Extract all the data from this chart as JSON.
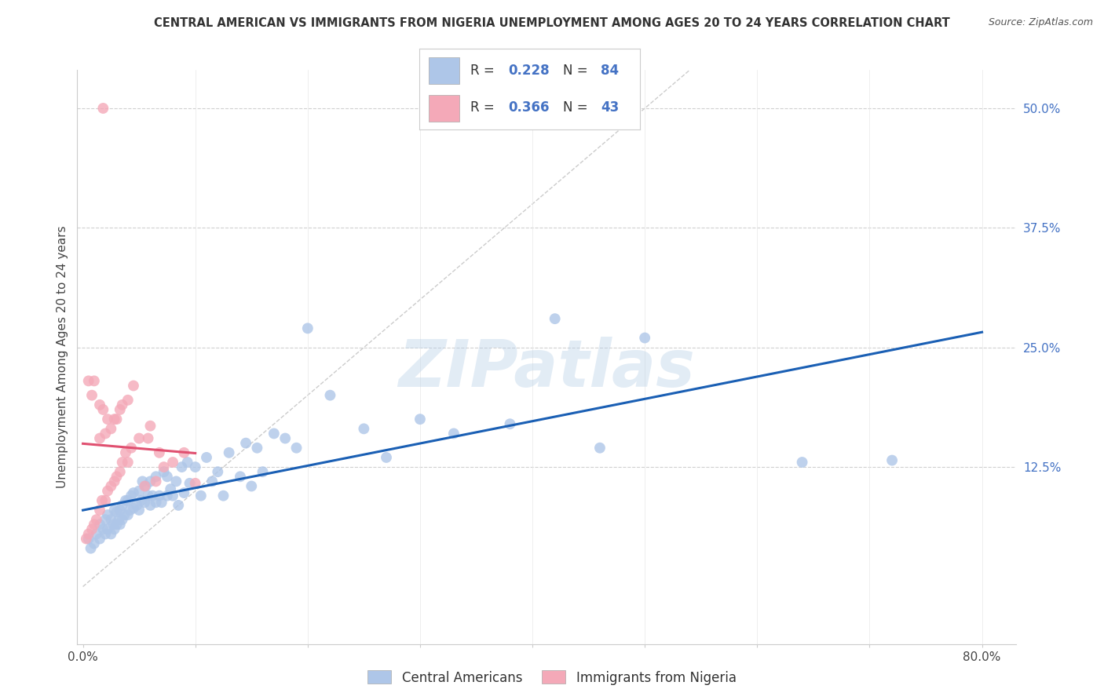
{
  "title": "CENTRAL AMERICAN VS IMMIGRANTS FROM NIGERIA UNEMPLOYMENT AMONG AGES 20 TO 24 YEARS CORRELATION CHART",
  "source": "Source: ZipAtlas.com",
  "ylabel": "Unemployment Among Ages 20 to 24 years",
  "x_ticks": [
    0.0,
    0.1,
    0.2,
    0.3,
    0.4,
    0.5,
    0.6,
    0.7,
    0.8
  ],
  "y_ticks": [
    0.0,
    0.125,
    0.25,
    0.375,
    0.5
  ],
  "xlim": [
    -0.005,
    0.83
  ],
  "ylim": [
    -0.06,
    0.54
  ],
  "blue_R": 0.228,
  "blue_N": 84,
  "pink_R": 0.366,
  "pink_N": 43,
  "blue_color": "#aec6e8",
  "pink_color": "#f4a9b8",
  "blue_line_color": "#1a5fb4",
  "pink_line_color": "#e05070",
  "watermark_text": "ZIPatlas",
  "legend_label_blue": "Central Americans",
  "legend_label_pink": "Immigrants from Nigeria",
  "blue_scatter_x": [
    0.005,
    0.007,
    0.01,
    0.012,
    0.015,
    0.015,
    0.018,
    0.02,
    0.02,
    0.022,
    0.022,
    0.025,
    0.025,
    0.027,
    0.028,
    0.028,
    0.03,
    0.03,
    0.032,
    0.033,
    0.033,
    0.035,
    0.035,
    0.037,
    0.038,
    0.04,
    0.04,
    0.042,
    0.043,
    0.045,
    0.045,
    0.048,
    0.05,
    0.05,
    0.052,
    0.053,
    0.055,
    0.056,
    0.058,
    0.06,
    0.06,
    0.062,
    0.065,
    0.065,
    0.068,
    0.07,
    0.072,
    0.075,
    0.075,
    0.078,
    0.08,
    0.083,
    0.085,
    0.088,
    0.09,
    0.093,
    0.095,
    0.1,
    0.105,
    0.11,
    0.115,
    0.12,
    0.125,
    0.13,
    0.14,
    0.145,
    0.15,
    0.155,
    0.16,
    0.17,
    0.18,
    0.19,
    0.2,
    0.22,
    0.25,
    0.27,
    0.3,
    0.33,
    0.38,
    0.42,
    0.46,
    0.5,
    0.64,
    0.72
  ],
  "blue_scatter_y": [
    0.05,
    0.04,
    0.045,
    0.055,
    0.05,
    0.065,
    0.06,
    0.055,
    0.07,
    0.06,
    0.075,
    0.055,
    0.07,
    0.065,
    0.06,
    0.08,
    0.065,
    0.078,
    0.07,
    0.065,
    0.08,
    0.07,
    0.085,
    0.075,
    0.09,
    0.075,
    0.09,
    0.08,
    0.095,
    0.082,
    0.098,
    0.085,
    0.08,
    0.1,
    0.09,
    0.11,
    0.088,
    0.105,
    0.095,
    0.085,
    0.11,
    0.095,
    0.088,
    0.115,
    0.095,
    0.088,
    0.12,
    0.095,
    0.115,
    0.102,
    0.095,
    0.11,
    0.085,
    0.125,
    0.098,
    0.13,
    0.108,
    0.125,
    0.095,
    0.135,
    0.11,
    0.12,
    0.095,
    0.14,
    0.115,
    0.15,
    0.105,
    0.145,
    0.12,
    0.16,
    0.155,
    0.145,
    0.27,
    0.2,
    0.165,
    0.135,
    0.175,
    0.16,
    0.17,
    0.28,
    0.145,
    0.26,
    0.13,
    0.132
  ],
  "pink_scatter_x": [
    0.003,
    0.005,
    0.005,
    0.008,
    0.008,
    0.01,
    0.01,
    0.012,
    0.015,
    0.015,
    0.015,
    0.017,
    0.018,
    0.02,
    0.02,
    0.022,
    0.022,
    0.025,
    0.025,
    0.028,
    0.028,
    0.03,
    0.03,
    0.033,
    0.033,
    0.035,
    0.035,
    0.038,
    0.04,
    0.04,
    0.043,
    0.045,
    0.05,
    0.055,
    0.058,
    0.06,
    0.065,
    0.068,
    0.072,
    0.08,
    0.09,
    0.1,
    0.018
  ],
  "pink_scatter_y": [
    0.05,
    0.055,
    0.215,
    0.06,
    0.2,
    0.065,
    0.215,
    0.07,
    0.08,
    0.155,
    0.19,
    0.09,
    0.185,
    0.09,
    0.16,
    0.1,
    0.175,
    0.105,
    0.165,
    0.11,
    0.175,
    0.115,
    0.175,
    0.12,
    0.185,
    0.13,
    0.19,
    0.14,
    0.13,
    0.195,
    0.145,
    0.21,
    0.155,
    0.105,
    0.155,
    0.168,
    0.11,
    0.14,
    0.125,
    0.13,
    0.14,
    0.108,
    0.5
  ]
}
